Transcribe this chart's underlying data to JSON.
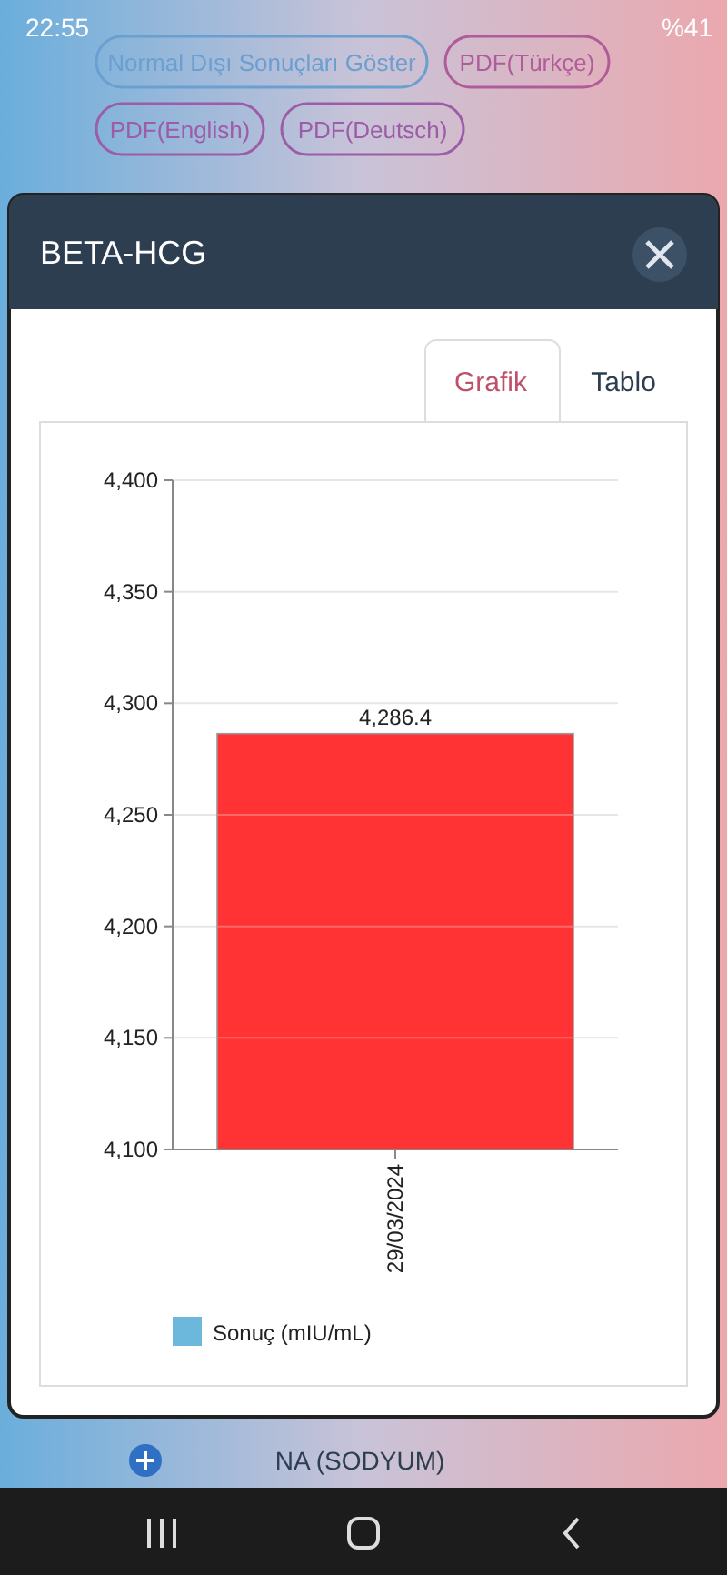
{
  "chart_data": {
    "type": "bar",
    "title": "BETA-HCG",
    "categories": [
      "29/03/2024"
    ],
    "series": [
      {
        "name": "Sonuç (mIU/mL)",
        "color": "#6bb8dc",
        "colors": [
          "#ff3333"
        ],
        "values": [
          4286.4
        ]
      }
    ],
    "value_labels": [
      "4,286.4"
    ],
    "ylim": [
      4100,
      4400
    ],
    "yticks": [
      {
        "value": 4100,
        "label": "4,100"
      },
      {
        "value": 4150,
        "label": "4,150"
      },
      {
        "value": 4200,
        "label": "4,200"
      },
      {
        "value": 4250,
        "label": "4,250"
      },
      {
        "value": 4300,
        "label": "4,300"
      },
      {
        "value": 4350,
        "label": "4,350"
      },
      {
        "value": 4400,
        "label": "4,400"
      }
    ],
    "grid": "y",
    "legend": "bottom left",
    "annotations": [
      "22:55",
      "%41",
      "Normal Dışı Sonuçları Göster",
      "PDF(Türkçe)",
      "PDF(English)",
      "PDF(Deutsch)",
      "Grafik",
      "Tablo",
      "NA (SODYUM)"
    ]
  }
}
